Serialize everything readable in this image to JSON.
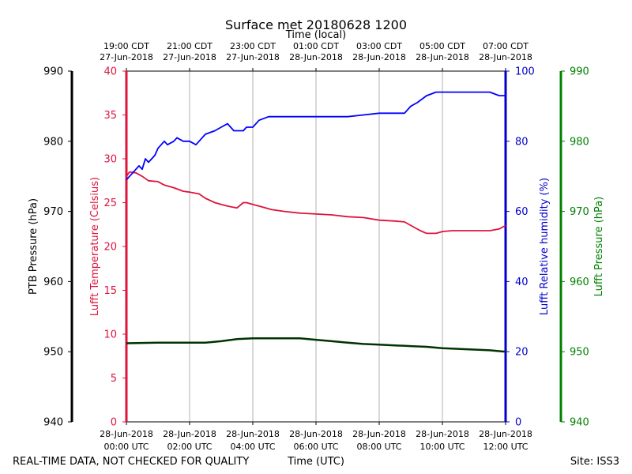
{
  "chart_data": {
    "type": "line",
    "title": "Surface met 20180628 1200",
    "top_axis_label": "Time (local)",
    "top_ticks": [
      {
        "l1": "19:00 CDT",
        "l2": "27-Jun-2018",
        "h": 0
      },
      {
        "l1": "21:00 CDT",
        "l2": "27-Jun-2018",
        "h": 2
      },
      {
        "l1": "23:00 CDT",
        "l2": "27-Jun-2018",
        "h": 4
      },
      {
        "l1": "01:00 CDT",
        "l2": "28-Jun-2018",
        "h": 6
      },
      {
        "l1": "03:00 CDT",
        "l2": "28-Jun-2018",
        "h": 8
      },
      {
        "l1": "05:00 CDT",
        "l2": "28-Jun-2018",
        "h": 10
      },
      {
        "l1": "07:00 CDT",
        "l2": "28-Jun-2018",
        "h": 12
      }
    ],
    "bottom_ticks": [
      {
        "l1": "28-Jun-2018",
        "l2": "00:00 UTC",
        "h": 0
      },
      {
        "l1": "28-Jun-2018",
        "l2": "02:00 UTC",
        "h": 2
      },
      {
        "l1": "28-Jun-2018",
        "l2": "04:00 UTC",
        "h": 4
      },
      {
        "l1": "28-Jun-2018",
        "l2": "06:00 UTC",
        "h": 6
      },
      {
        "l1": "28-Jun-2018",
        "l2": "08:00 UTC",
        "h": 8
      },
      {
        "l1": "28-Jun-2018",
        "l2": "10:00 UTC",
        "h": 10
      },
      {
        "l1": "28-Jun-2018",
        "l2": "12:00 UTC",
        "h": 12
      }
    ],
    "xlabel": "Time (UTC)",
    "xlim": [
      0,
      12
    ],
    "footer_left": "REAL-TIME DATA, NOT CHECKED FOR QUALITY",
    "footer_right": "Site: ISS3",
    "axes": {
      "ptb": {
        "label": "PTB Pressure (hPa)",
        "color": "#000000",
        "lim": [
          940,
          990
        ],
        "ticks": [
          "940",
          "950",
          "960",
          "970",
          "980",
          "990"
        ]
      },
      "temp": {
        "label": "Lufft Temperature (Celsius)",
        "color": "#dc143c",
        "lim": [
          0,
          40
        ],
        "ticks": [
          "0",
          "5",
          "10",
          "15",
          "20",
          "25",
          "30",
          "35",
          "40"
        ]
      },
      "rh": {
        "label": "Lufft Relative humidity (%)",
        "color": "#0000cc",
        "lim": [
          0,
          100
        ],
        "ticks": [
          "0",
          "20",
          "40",
          "60",
          "80",
          "100"
        ]
      },
      "lufft_p": {
        "label": "Lufft Pressure (hPa)",
        "color": "#008000",
        "lim": [
          940,
          990
        ],
        "ticks": [
          "940",
          "950",
          "960",
          "970",
          "980",
          "990"
        ]
      }
    },
    "series": [
      {
        "name": "Lufft Temperature",
        "axis": "temp",
        "color": "#dc143c",
        "x": [
          0,
          0.1,
          0.3,
          0.5,
          0.7,
          1.0,
          1.2,
          1.5,
          1.8,
          2.0,
          2.3,
          2.5,
          2.8,
          3.0,
          3.2,
          3.5,
          3.7,
          3.8,
          4.0,
          4.3,
          4.6,
          5.0,
          5.5,
          6.0,
          6.5,
          7.0,
          7.5,
          8.0,
          8.5,
          8.8,
          9.0,
          9.3,
          9.5,
          9.8,
          10.0,
          10.3,
          10.5,
          11.0,
          11.5,
          11.8,
          12.0
        ],
        "y": [
          28,
          28.5,
          28.4,
          28.0,
          27.5,
          27.4,
          27.0,
          26.7,
          26.3,
          26.2,
          26.0,
          25.5,
          25.0,
          24.8,
          24.6,
          24.4,
          25.0,
          25.0,
          24.8,
          24.5,
          24.2,
          24.0,
          23.8,
          23.7,
          23.6,
          23.4,
          23.3,
          23.0,
          22.9,
          22.8,
          22.4,
          21.8,
          21.5,
          21.5,
          21.7,
          21.8,
          21.8,
          21.8,
          21.8,
          22.0,
          22.4
        ]
      },
      {
        "name": "Lufft Relative humidity",
        "axis": "rh",
        "color": "#0000ff",
        "x": [
          0,
          0.1,
          0.2,
          0.3,
          0.4,
          0.5,
          0.6,
          0.7,
          0.8,
          0.9,
          1.0,
          1.2,
          1.3,
          1.5,
          1.6,
          1.8,
          2.0,
          2.2,
          2.3,
          2.5,
          2.8,
          3.0,
          3.2,
          3.4,
          3.5,
          3.7,
          3.8,
          4.0,
          4.2,
          4.5,
          4.8,
          5.0,
          5.5,
          6.0,
          6.5,
          7.0,
          7.5,
          8.0,
          8.5,
          8.8,
          9.0,
          9.2,
          9.5,
          9.8,
          10.0,
          10.3,
          11.0,
          11.5,
          11.8,
          12.0
        ],
        "y": [
          69,
          70,
          71,
          72,
          73,
          72,
          75,
          74,
          75,
          76,
          78,
          80,
          79,
          80,
          81,
          80,
          80,
          79,
          80,
          82,
          83,
          84,
          85,
          83,
          83,
          83,
          84,
          84,
          86,
          87,
          87,
          87,
          87,
          87,
          87,
          87,
          87.5,
          88,
          88,
          88,
          90,
          91,
          93,
          94,
          94,
          94,
          94,
          94,
          93,
          93
        ]
      },
      {
        "name": "PTB Pressure",
        "axis": "ptb",
        "color": "#003300",
        "x": [
          0,
          1,
          2,
          2.5,
          3,
          3.5,
          4,
          4.5,
          5,
          5.5,
          6,
          6.5,
          7,
          7.5,
          8,
          8.5,
          9,
          9.5,
          10,
          10.5,
          11,
          11.5,
          12
        ],
        "y": [
          951.2,
          951.3,
          951.3,
          951.3,
          951.5,
          951.8,
          951.9,
          951.9,
          951.9,
          951.9,
          951.7,
          951.5,
          951.3,
          951.1,
          951.0,
          950.9,
          950.8,
          950.7,
          950.5,
          950.4,
          950.3,
          950.2,
          950.0
        ]
      }
    ]
  }
}
